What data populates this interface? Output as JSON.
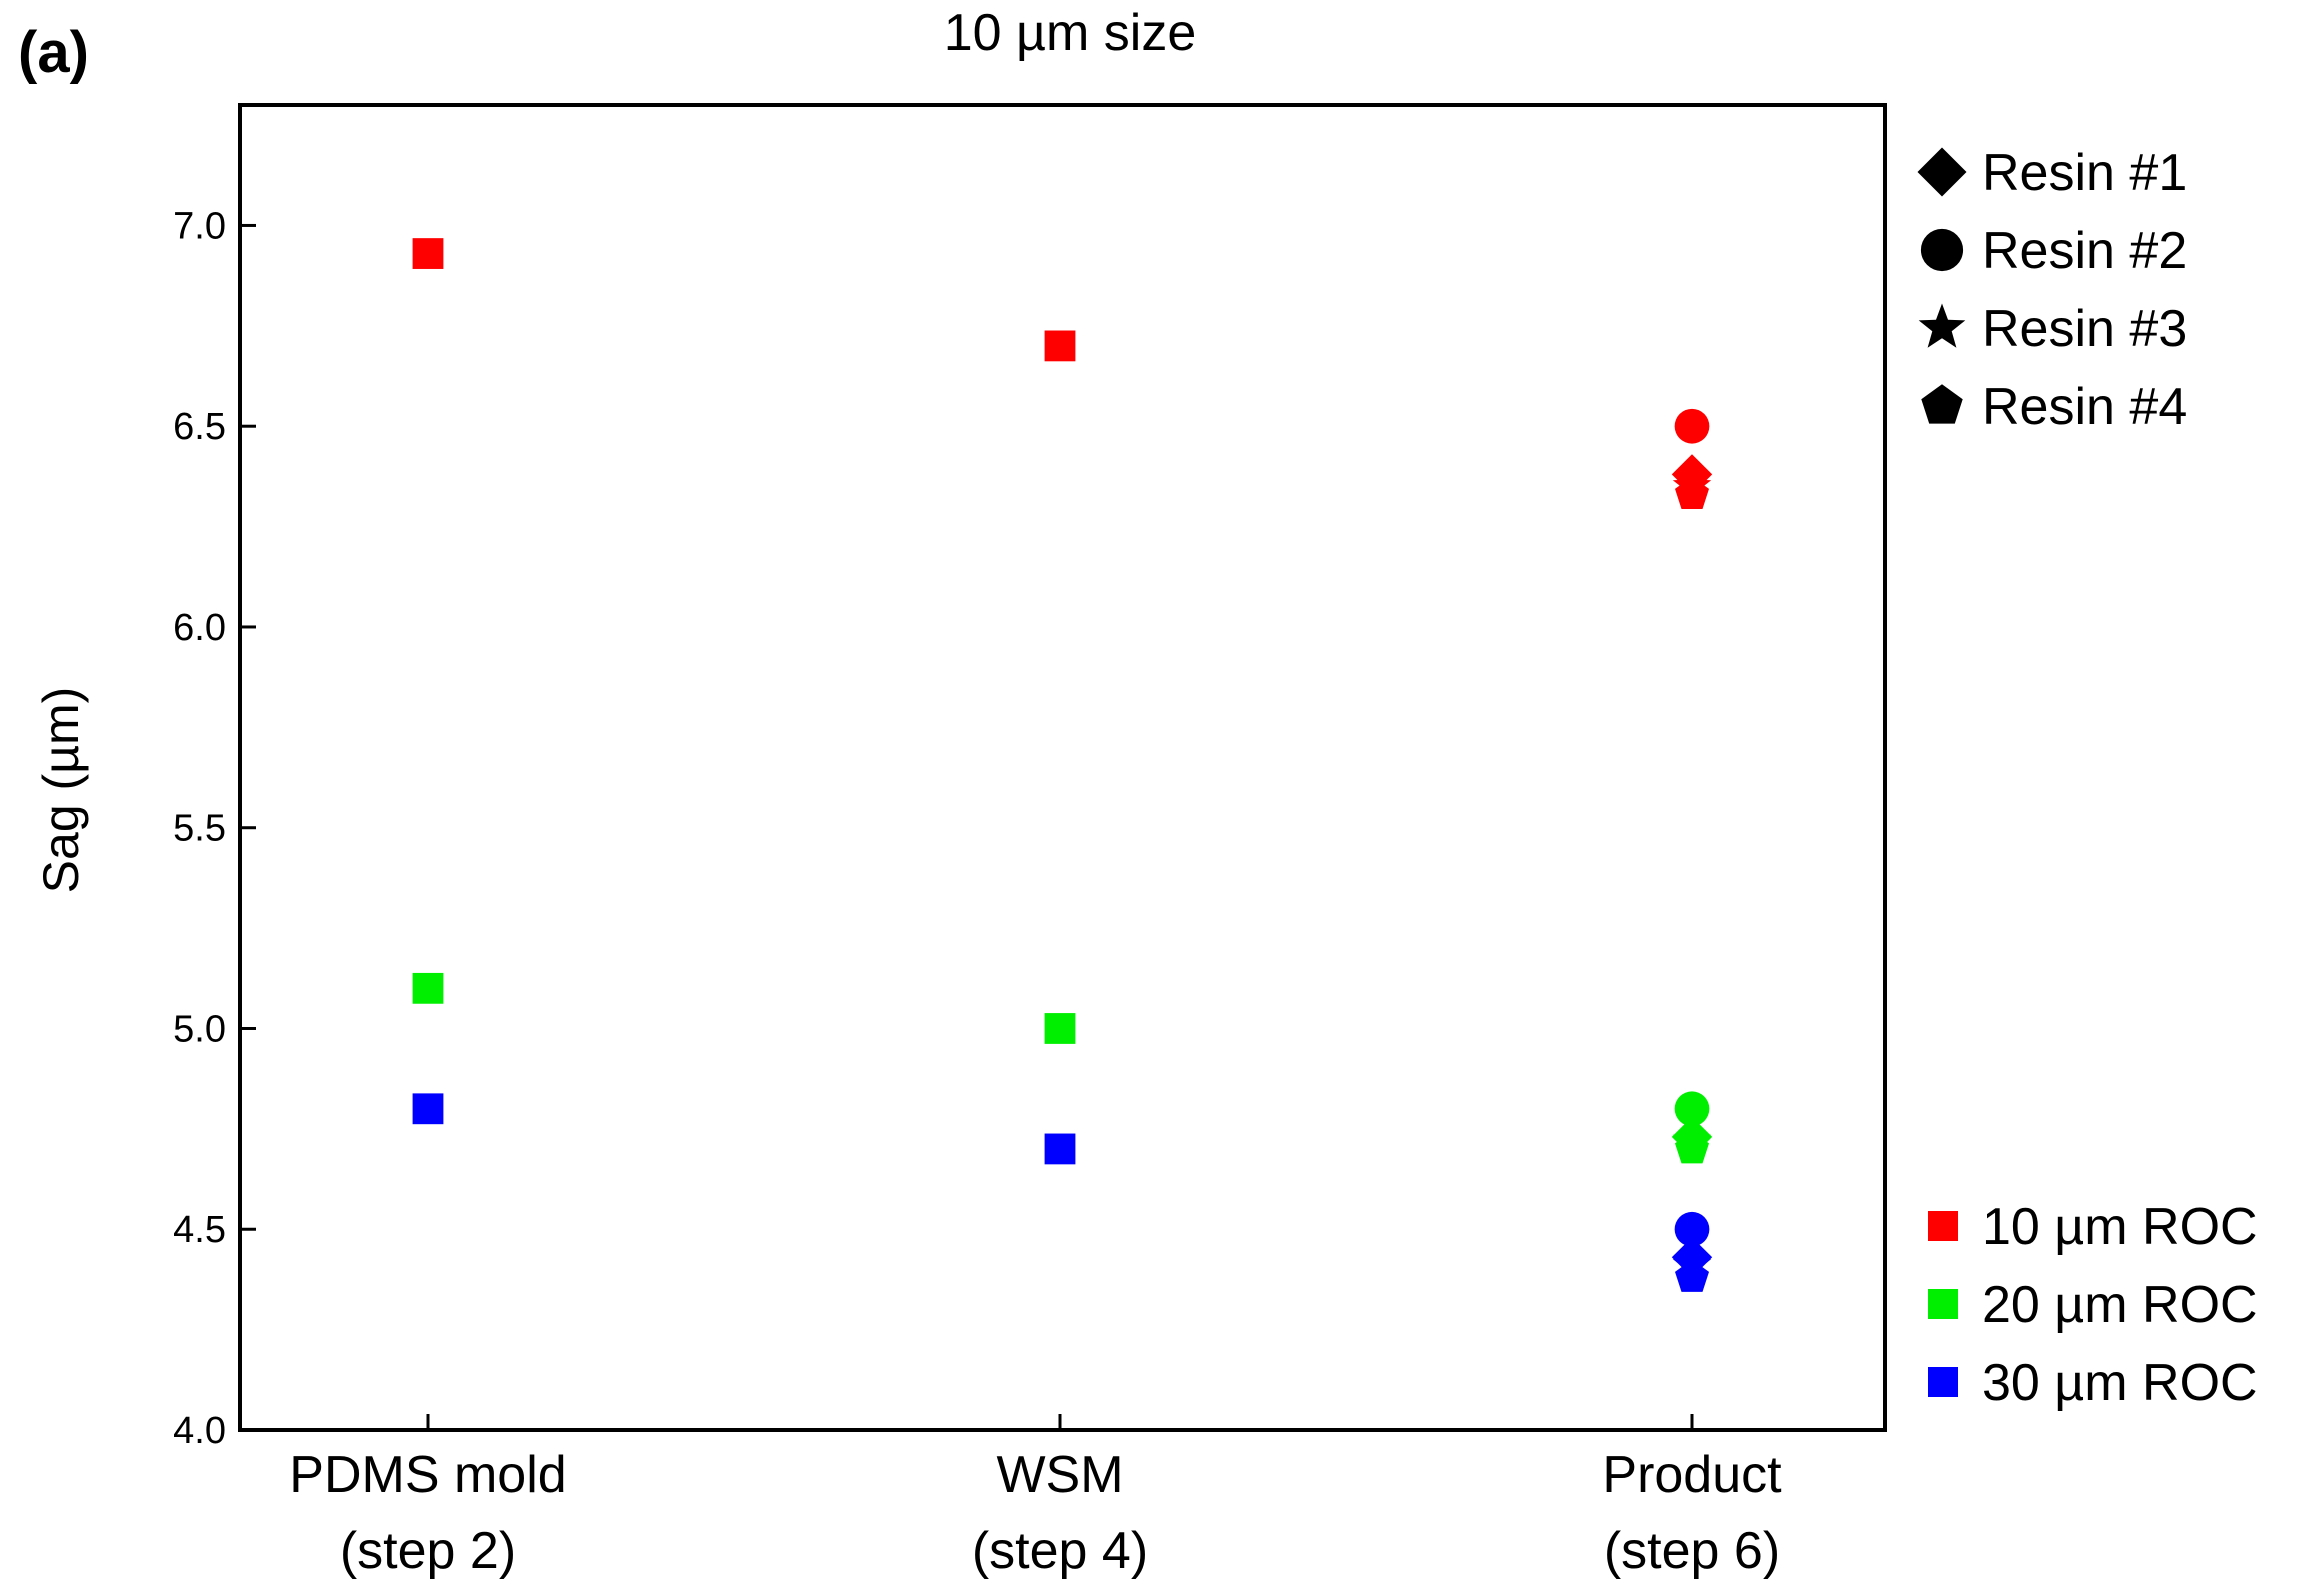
{
  "panel_label": "(a)",
  "chart_data": {
    "type": "scatter",
    "title": "10 µm size",
    "xlabel": "",
    "ylabel": "Sag (µm)",
    "ylim": [
      4.0,
      7.3
    ],
    "yticks": [
      "4.0",
      "4.5",
      "5.0",
      "5.5",
      "6.0",
      "6.5",
      "7.0"
    ],
    "grid": false,
    "categories": [
      {
        "line1": "PDMS mold",
        "line2": "(step 2)"
      },
      {
        "line1": "WSM",
        "line2": "(step 4)"
      },
      {
        "line1": "Product",
        "line2": "(step 6)"
      }
    ],
    "shape_legend": {
      "placement": "top-right-outside",
      "items": [
        {
          "label": "Resin #1",
          "marker": "diamond"
        },
        {
          "label": "Resin #2",
          "marker": "circle"
        },
        {
          "label": "Resin #3",
          "marker": "star"
        },
        {
          "label": "Resin #4",
          "marker": "pentagon"
        }
      ]
    },
    "color_legend": {
      "placement": "bottom-right-outside",
      "items": [
        {
          "label": "10 µm ROC",
          "color": "#ff0000"
        },
        {
          "label": "20 µm ROC",
          "color": "#00ee00"
        },
        {
          "label": "30 µm ROC",
          "color": "#0000ff"
        }
      ]
    },
    "series": [
      {
        "name": "10 µm ROC",
        "color": "#ff0000",
        "points": [
          {
            "category": 0,
            "marker": "square",
            "y": 6.93
          },
          {
            "category": 1,
            "marker": "square",
            "y": 6.7
          },
          {
            "category": 2,
            "marker": "circle",
            "y": 6.5
          },
          {
            "category": 2,
            "marker": "diamond",
            "y": 6.38
          },
          {
            "category": 2,
            "marker": "star",
            "y": 6.35
          },
          {
            "category": 2,
            "marker": "pentagon",
            "y": 6.33
          }
        ]
      },
      {
        "name": "20 µm ROC",
        "color": "#00ee00",
        "points": [
          {
            "category": 0,
            "marker": "square",
            "y": 5.1
          },
          {
            "category": 1,
            "marker": "square",
            "y": 5.0
          },
          {
            "category": 2,
            "marker": "circle",
            "y": 4.8
          },
          {
            "category": 2,
            "marker": "diamond",
            "y": 4.73
          },
          {
            "category": 2,
            "marker": "star",
            "y": 4.72
          },
          {
            "category": 2,
            "marker": "pentagon",
            "y": 4.7
          }
        ]
      },
      {
        "name": "30 µm ROC",
        "color": "#0000ff",
        "points": [
          {
            "category": 0,
            "marker": "square",
            "y": 4.8
          },
          {
            "category": 1,
            "marker": "square",
            "y": 4.7
          },
          {
            "category": 2,
            "marker": "circle",
            "y": 4.5
          },
          {
            "category": 2,
            "marker": "diamond",
            "y": 4.43
          },
          {
            "category": 2,
            "marker": "star",
            "y": 4.41
          },
          {
            "category": 2,
            "marker": "pentagon",
            "y": 4.38
          }
        ]
      }
    ]
  }
}
